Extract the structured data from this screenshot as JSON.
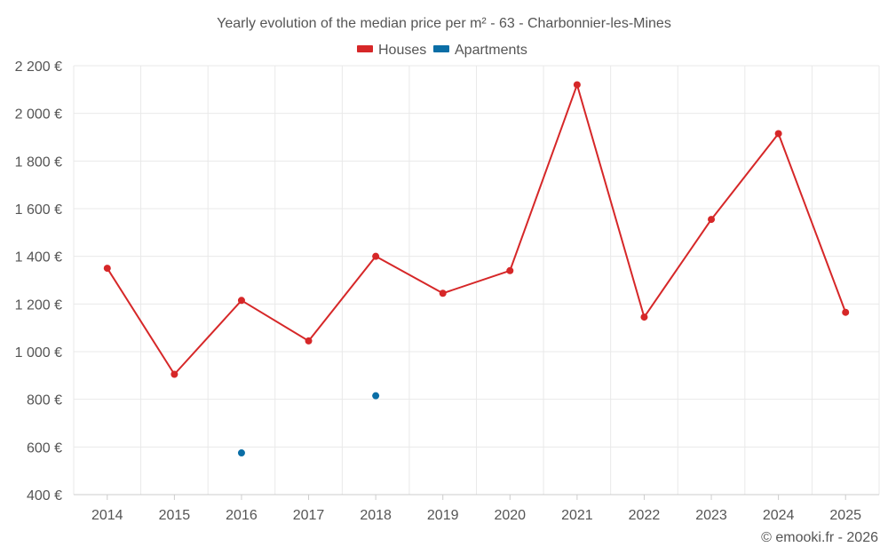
{
  "chart_data": {
    "type": "line",
    "title": "Yearly evolution of the median price per m² - 63 - Charbonnier-les-Mines",
    "categories": [
      "2014",
      "2015",
      "2016",
      "2017",
      "2018",
      "2019",
      "2020",
      "2021",
      "2022",
      "2023",
      "2024",
      "2025"
    ],
    "series": [
      {
        "name": "Houses",
        "color": "#d62728",
        "values": [
          1350,
          905,
          1215,
          1045,
          1400,
          1245,
          1340,
          2120,
          1145,
          1555,
          1915,
          1165
        ]
      },
      {
        "name": "Apartments",
        "color": "#0a6ea6",
        "values": [
          null,
          null,
          575,
          null,
          815,
          null,
          null,
          null,
          null,
          null,
          null,
          null
        ]
      }
    ],
    "ylim": [
      400,
      2200
    ],
    "yticks": [
      400,
      600,
      800,
      1000,
      1200,
      1400,
      1600,
      1800,
      2000,
      2200
    ],
    "ytick_labels": [
      "400 €",
      "600 €",
      "800 €",
      "1 000 €",
      "1 200 €",
      "1 400 €",
      "1 600 €",
      "1 800 €",
      "2 000 €",
      "2 200 €"
    ],
    "legend_position": "top-center",
    "grid": true,
    "credit": "© emooki.fr - 2026"
  }
}
